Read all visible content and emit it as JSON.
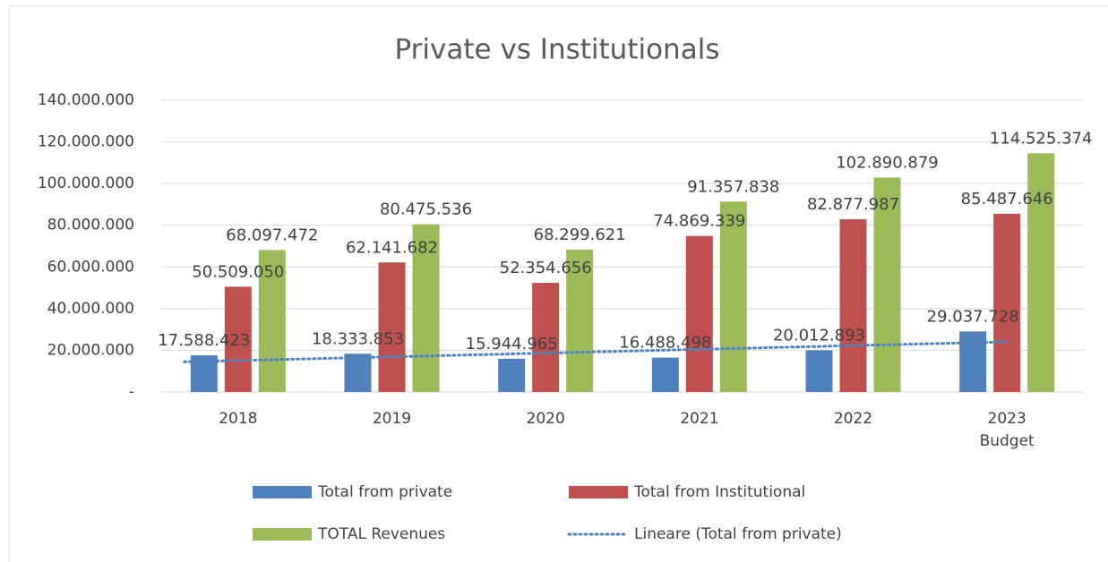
{
  "chart_data": {
    "type": "bar",
    "title": "Private vs Institutionals",
    "categories": [
      "2018",
      "2019",
      "2020",
      "2021",
      "2022",
      "2023\nBudget"
    ],
    "series": [
      {
        "name": "Total from private",
        "color": "#4f81bd",
        "values": [
          17588423,
          18333853,
          15944965,
          16488498,
          20012893,
          29037728
        ],
        "value_labels": [
          "17.588.423",
          "18.333.853",
          "15.944.965",
          "16.488.498",
          "20.012.893",
          "29.037.728"
        ]
      },
      {
        "name": "Total from Institutional",
        "color": "#c0504d",
        "values": [
          50509050,
          62141682,
          52354656,
          74869339,
          82877987,
          85487646
        ],
        "value_labels": [
          "50.509.050",
          "62.141.682",
          "52.354.656",
          "74.869.339",
          "82.877.987",
          "85.487.646"
        ]
      },
      {
        "name": "TOTAL Revenues",
        "color": "#9bbb59",
        "values": [
          68097472,
          80475536,
          68299621,
          91357838,
          102890879,
          114525374
        ],
        "value_labels": [
          "68.097.472",
          "80.475.536",
          "68.299.621",
          "91.357.838",
          "102.890.879",
          "114.525.374"
        ]
      }
    ],
    "trendline": {
      "name": "Lineare (Total from private)",
      "series": 0,
      "color": "#4f81bd"
    },
    "ylim": [
      0,
      140000000
    ],
    "yticks": [
      {
        "value": 0,
        "label": "-"
      },
      {
        "value": 20000000,
        "label": "20.000.000"
      },
      {
        "value": 40000000,
        "label": "40.000.000"
      },
      {
        "value": 60000000,
        "label": "60.000.000"
      },
      {
        "value": 80000000,
        "label": "80.000.000"
      },
      {
        "value": 100000000,
        "label": "100.000.000"
      },
      {
        "value": 120000000,
        "label": "120.000.000"
      },
      {
        "value": 140000000,
        "label": "140.000.000"
      }
    ],
    "grid": true,
    "legend": "bottom"
  }
}
